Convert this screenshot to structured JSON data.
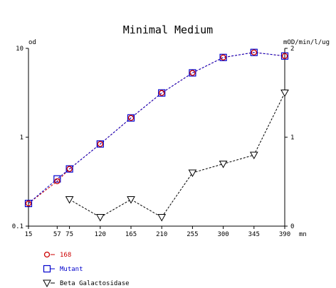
{
  "chart_data": {
    "type": "line",
    "title": "Minimal Medium",
    "left_axis": {
      "label": "od",
      "scale": "log",
      "range": [
        0.1,
        10
      ],
      "ticks": [
        "10",
        "1",
        "0.1"
      ]
    },
    "right_axis": {
      "label": "mOD/min/l/ug",
      "scale": "linear",
      "range": [
        0,
        2
      ],
      "ticks": [
        "2",
        "1",
        "0"
      ]
    },
    "x_axis": {
      "unit": "mn",
      "range": [
        15,
        390
      ],
      "ticks": [
        15,
        57,
        75,
        120,
        165,
        210,
        255,
        300,
        345,
        390
      ],
      "tick_labels": [
        "15",
        "57",
        "75",
        "120",
        "165",
        "210",
        "255",
        "300",
        "345",
        "390"
      ]
    },
    "grid": false,
    "legend_position": "bottom-left",
    "series": [
      {
        "name": "168",
        "axis": "left",
        "marker": "circle",
        "color": "#cc0000",
        "line_color": "#cc0000",
        "x": [
          15,
          57,
          75,
          120,
          165,
          210,
          255,
          300,
          345,
          390
        ],
        "y": [
          0.18,
          0.32,
          0.44,
          0.84,
          1.65,
          3.15,
          5.3,
          7.9,
          9.0,
          8.2
        ]
      },
      {
        "name": "Mutant",
        "axis": "left",
        "marker": "square",
        "color": "#0000cc",
        "line_color": "#0000cc",
        "x": [
          15,
          57,
          75,
          120,
          165,
          210,
          255,
          300,
          345,
          390
        ],
        "y": [
          0.18,
          0.34,
          0.44,
          0.84,
          1.65,
          3.15,
          5.3,
          7.9,
          9.0,
          8.2
        ]
      },
      {
        "name": "Beta Galactosidase",
        "axis": "right",
        "marker": "triangle-down",
        "color": "#000000",
        "line_color": "#000000",
        "x": [
          75,
          120,
          165,
          210,
          255,
          300,
          345,
          390
        ],
        "y": [
          0.3,
          0.1,
          0.3,
          0.1,
          0.6,
          0.7,
          0.8,
          1.5
        ]
      }
    ]
  }
}
